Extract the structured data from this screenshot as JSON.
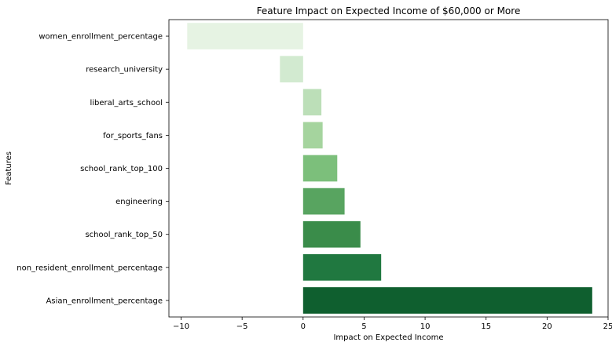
{
  "chart_data": {
    "type": "bar",
    "orientation": "horizontal",
    "title": "Feature Impact on Expected Income of $60,000 or More",
    "xlabel": "Impact on Expected Income",
    "ylabel": "Features",
    "categories": [
      "women_enrollment_percentage",
      "research_university",
      "liberal_arts_school",
      "for_sports_fans",
      "school_rank_top_100",
      "engineering",
      "school_rank_top_50",
      "non_resident_enrollment_percentage",
      "Asian_enrollment_percentage"
    ],
    "values": [
      -9.5,
      -1.9,
      1.5,
      1.6,
      2.8,
      3.4,
      4.7,
      6.4,
      23.7
    ],
    "colors": [
      "#e6f3e3",
      "#d2ead0",
      "#bcdfb8",
      "#a5d49e",
      "#7cbf7b",
      "#58a460",
      "#3a8c4a",
      "#207840",
      "#0f5f2f"
    ],
    "xlim": [
      -11,
      25
    ],
    "xticks": [
      -10,
      -5,
      0,
      5,
      10,
      15,
      20,
      25
    ],
    "xtick_labels": [
      "−10",
      "−5",
      "0",
      "5",
      "10",
      "15",
      "20",
      "25"
    ],
    "grid": false,
    "legend": "none"
  }
}
